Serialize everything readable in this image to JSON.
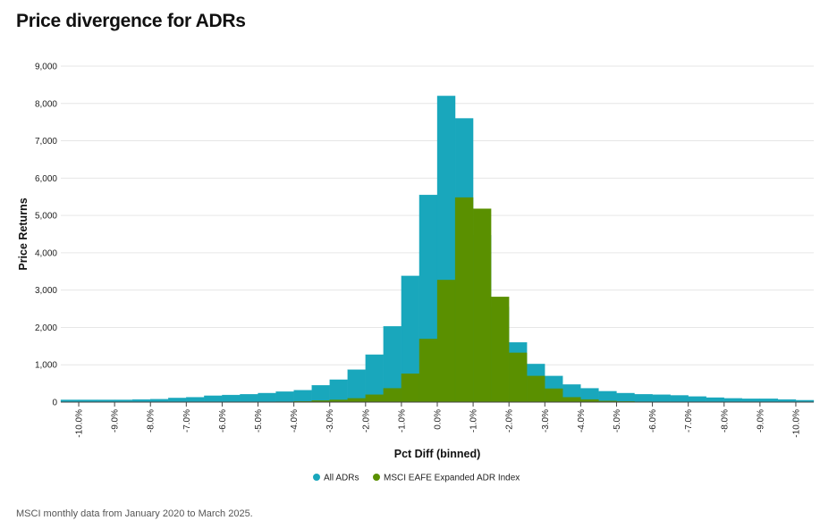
{
  "title": "Price divergence for ADRs",
  "footnote": "MSCI monthly data from January 2020 to March 2025.",
  "colors": {
    "all_adrs": "#19a7bc",
    "msci": "#5a9000",
    "grid": "#e6e6e6",
    "axis": "#444444"
  },
  "chart_data": {
    "type": "bar",
    "title": "Price divergence for ADRs",
    "xlabel": "Pct Diff (binned)",
    "ylabel": "Price Returns",
    "ylim": [
      0,
      9000
    ],
    "yticks": [
      0,
      1000,
      2000,
      3000,
      4000,
      5000,
      6000,
      7000,
      8000,
      9000
    ],
    "ytick_labels": [
      "0",
      "1,000",
      "2,000",
      "3,000",
      "4,000",
      "5,000",
      "6,000",
      "7,000",
      "8,000",
      "9,000"
    ],
    "xtick_labels": [
      "-10.0%",
      "-9.0%",
      "-8.0%",
      "-7.0%",
      "-6.0%",
      "-5.0%",
      "-4.0%",
      "-3.0%",
      "-2.0%",
      "-1.0%",
      "0.0%",
      "-1.0%",
      "-2.0%",
      "-3.0%",
      "-4.0%",
      "-5.0%",
      "-6.0%",
      "-7.0%",
      "-8.0%",
      "-9.0%",
      "-10.0%"
    ],
    "bin_start": -10.25,
    "bin_width": 0.5,
    "x_range": [
      -10.5,
      10.5
    ],
    "grid": true,
    "legend_position": "bottom",
    "series": [
      {
        "name": "All ADRs",
        "values": [
          60,
          60,
          60,
          60,
          70,
          80,
          110,
          130,
          170,
          190,
          210,
          240,
          280,
          320,
          450,
          600,
          870,
          1270,
          2030,
          3380,
          5550,
          8200,
          7600,
          4470,
          2550,
          1600,
          1020,
          700,
          470,
          370,
          290,
          240,
          210,
          200,
          180,
          150,
          120,
          100,
          90,
          90,
          70,
          50
        ]
      },
      {
        "name": "MSCI EAFE Expanded ADR Index",
        "values": [
          0,
          0,
          0,
          0,
          0,
          0,
          0,
          0,
          0,
          0,
          0,
          0,
          10,
          20,
          40,
          60,
          100,
          200,
          370,
          760,
          1690,
          3270,
          5480,
          5180,
          2820,
          1320,
          700,
          360,
          130,
          70,
          30,
          20,
          10,
          0,
          0,
          0,
          0,
          0,
          0,
          0,
          0,
          0
        ]
      }
    ]
  }
}
